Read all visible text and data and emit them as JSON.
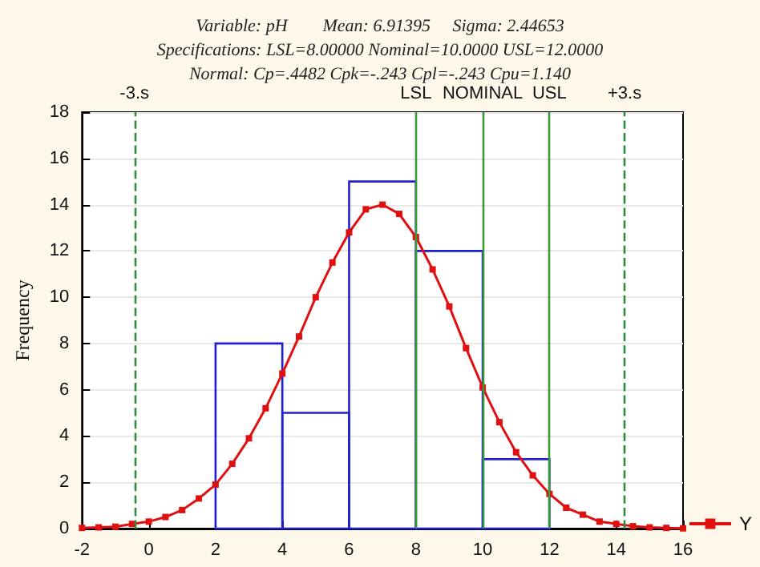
{
  "chart_data": {
    "type": "histogram",
    "title": "Variable: pH        Mean: 6.91395     Sigma: 2.44653",
    "subtitle": "Specifications: LSL=8.00000 Nominal=10.0000 USL=12.0000",
    "annotations": [
      "Normal: Cp=.4482 Cpk=-.243 Cpl=-.243 Cpu=1.140"
    ],
    "ylabel": "Frequency",
    "bins": [
      2,
      4,
      6,
      8,
      10,
      12
    ],
    "values": [
      8,
      5,
      15,
      12,
      3
    ],
    "color": "#2020d0",
    "series": [
      {
        "type": "line",
        "name": "Y",
        "color": "#e01010",
        "marker": "square",
        "x": [
          -2,
          -1.5,
          -1,
          -0.5,
          0,
          0.5,
          1,
          1.5,
          2,
          2.5,
          3,
          3.5,
          4,
          4.5,
          5,
          5.5,
          6,
          6.5,
          7,
          7.5,
          8,
          8.5,
          9,
          9.5,
          10,
          10.5,
          11,
          11.5,
          12,
          12.5,
          13,
          13.5,
          14,
          14.5,
          15,
          15.5,
          16
        ],
        "values": [
          0.03,
          0.05,
          0.08,
          0.2,
          0.3,
          0.5,
          0.8,
          1.3,
          1.9,
          2.8,
          3.9,
          5.2,
          6.7,
          8.3,
          10.0,
          11.5,
          12.8,
          13.8,
          14.0,
          13.6,
          12.6,
          11.2,
          9.6,
          7.8,
          6.1,
          4.6,
          3.3,
          2.3,
          1.5,
          0.9,
          0.6,
          0.3,
          0.2,
          0.1,
          0.05,
          0.03,
          0.01
        ]
      }
    ],
    "ref_lines": [
      {
        "axis": "x",
        "value": -0.43,
        "label": "-3.s",
        "color": "#2e8b3e",
        "line_style": "dashed"
      },
      {
        "axis": "x",
        "value": 8,
        "label": "LSL",
        "color": "#3a9a3a",
        "line_style": "solid"
      },
      {
        "axis": "x",
        "value": 10,
        "label": "NOMINAL",
        "color": "#3a9a3a",
        "line_style": "solid"
      },
      {
        "axis": "x",
        "value": 12,
        "label": "USL",
        "color": "#3a9a3a",
        "line_style": "solid"
      },
      {
        "axis": "x",
        "value": 14.25,
        "label": "+3.s",
        "color": "#2e8b3e",
        "line_style": "dashed"
      }
    ],
    "xlim": [
      -2,
      16
    ],
    "xticks": [
      -2,
      0,
      2,
      4,
      6,
      8,
      10,
      12,
      14,
      16
    ],
    "ylim": [
      0,
      18
    ],
    "yticks": [
      0,
      2,
      4,
      6,
      8,
      10,
      12,
      14,
      16,
      18
    ],
    "grid": "y",
    "legend": "right"
  }
}
